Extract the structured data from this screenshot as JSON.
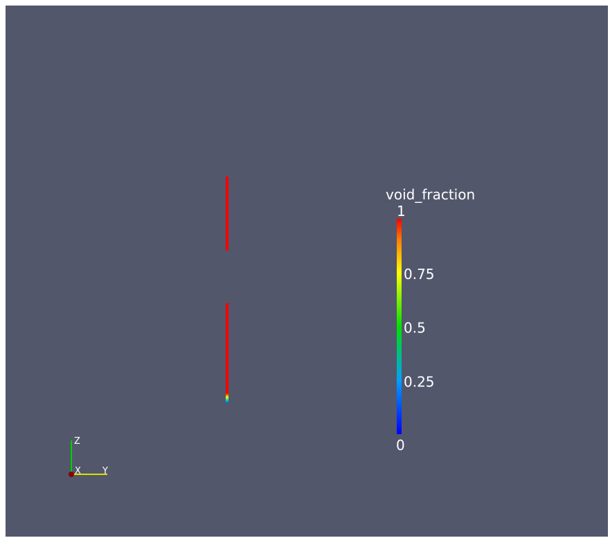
{
  "colorbar": {
    "title": "void_fraction",
    "range": [
      0,
      1
    ],
    "ticks": [
      1,
      0.75,
      0.5,
      0.25,
      0
    ]
  },
  "axes": {
    "z_label": "Z",
    "x_label": "X",
    "y_label": "Y"
  }
}
